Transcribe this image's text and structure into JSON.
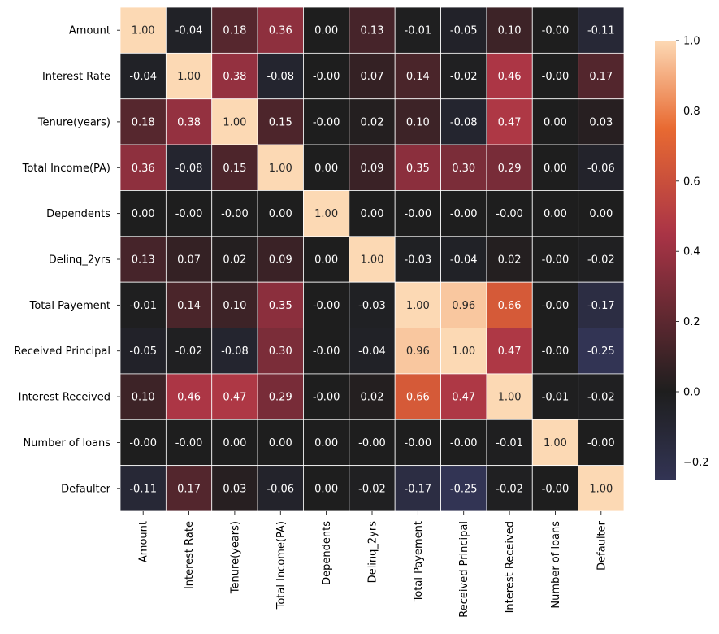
{
  "chart_data": {
    "type": "heatmap",
    "title": "",
    "labels": [
      "Amount",
      "Interest Rate",
      "Tenure(years)",
      "Total Income(PA)",
      "Dependents",
      "Delinq_2yrs",
      "Total Payement ",
      "Received Principal",
      "Interest Received",
      "Number of loans",
      "Defaulter"
    ],
    "values": [
      [
        1.0,
        -0.04,
        0.18,
        0.36,
        0.0,
        0.13,
        -0.01,
        -0.05,
        0.1,
        -0.0,
        -0.11
      ],
      [
        -0.04,
        1.0,
        0.38,
        -0.08,
        -0.0,
        0.07,
        0.14,
        -0.02,
        0.46,
        -0.0,
        0.17
      ],
      [
        0.18,
        0.38,
        1.0,
        0.15,
        -0.0,
        0.02,
        0.1,
        -0.08,
        0.47,
        0.0,
        0.03
      ],
      [
        0.36,
        -0.08,
        0.15,
        1.0,
        0.0,
        0.09,
        0.35,
        0.3,
        0.29,
        0.0,
        -0.06
      ],
      [
        0.0,
        -0.0,
        -0.0,
        0.0,
        1.0,
        0.0,
        -0.0,
        -0.0,
        -0.0,
        0.0,
        0.0
      ],
      [
        0.13,
        0.07,
        0.02,
        0.09,
        0.0,
        1.0,
        -0.03,
        -0.04,
        0.02,
        -0.0,
        -0.02
      ],
      [
        -0.01,
        0.14,
        0.1,
        0.35,
        -0.0,
        -0.03,
        1.0,
        0.96,
        0.66,
        -0.0,
        -0.17
      ],
      [
        -0.05,
        -0.02,
        -0.08,
        0.3,
        -0.0,
        -0.04,
        0.96,
        1.0,
        0.47,
        -0.0,
        -0.25
      ],
      [
        0.1,
        0.46,
        0.47,
        0.29,
        -0.0,
        0.02,
        0.66,
        0.47,
        1.0,
        -0.01,
        -0.02
      ],
      [
        -0.0,
        -0.0,
        0.0,
        0.0,
        0.0,
        -0.0,
        -0.0,
        -0.0,
        -0.01,
        1.0,
        -0.0
      ],
      [
        -0.11,
        0.17,
        0.03,
        -0.06,
        0.0,
        -0.02,
        -0.17,
        -0.25,
        -0.02,
        -0.0,
        1.0
      ]
    ],
    "value_labels": [
      [
        "1.00",
        "-0.04",
        "0.18",
        "0.36",
        "0.00",
        "0.13",
        "-0.01",
        "-0.05",
        "0.10",
        "-0.00",
        "-0.11"
      ],
      [
        "-0.04",
        "1.00",
        "0.38",
        "-0.08",
        "-0.00",
        "0.07",
        "0.14",
        "-0.02",
        "0.46",
        "-0.00",
        "0.17"
      ],
      [
        "0.18",
        "0.38",
        "1.00",
        "0.15",
        "-0.00",
        "0.02",
        "0.10",
        "-0.08",
        "0.47",
        "0.00",
        "0.03"
      ],
      [
        "0.36",
        "-0.08",
        "0.15",
        "1.00",
        "0.00",
        "0.09",
        "0.35",
        "0.30",
        "0.29",
        "0.00",
        "-0.06"
      ],
      [
        "0.00",
        "-0.00",
        "-0.00",
        "0.00",
        "1.00",
        "0.00",
        "-0.00",
        "-0.00",
        "-0.00",
        "0.00",
        "0.00"
      ],
      [
        "0.13",
        "0.07",
        "0.02",
        "0.09",
        "0.00",
        "1.00",
        "-0.03",
        "-0.04",
        "0.02",
        "-0.00",
        "-0.02"
      ],
      [
        "-0.01",
        "0.14",
        "0.10",
        "0.35",
        "-0.00",
        "-0.03",
        "1.00",
        "0.96",
        "0.66",
        "-0.00",
        "-0.17"
      ],
      [
        "-0.05",
        "-0.02",
        "-0.08",
        "0.30",
        "-0.00",
        "-0.04",
        "0.96",
        "1.00",
        "0.47",
        "-0.00",
        "-0.25"
      ],
      [
        "0.10",
        "0.46",
        "0.47",
        "0.29",
        "-0.00",
        "0.02",
        "0.66",
        "0.47",
        "1.00",
        "-0.01",
        "-0.02"
      ],
      [
        "-0.00",
        "-0.00",
        "0.00",
        "0.00",
        "0.00",
        "-0.00",
        "-0.00",
        "-0.00",
        "-0.01",
        "1.00",
        "-0.00"
      ],
      [
        "-0.11",
        "0.17",
        "0.03",
        "-0.06",
        "0.00",
        "-0.02",
        "-0.17",
        "-0.25",
        "-0.02",
        "-0.00",
        "1.00"
      ]
    ],
    "colorbar": {
      "range": [
        -0.25,
        1.0
      ],
      "center": 0.0,
      "ticks": [
        -0.2,
        0.0,
        0.2,
        0.4,
        0.6,
        0.8,
        1.0
      ],
      "tick_labels": [
        "−0.2",
        "0.0",
        "0.2",
        "0.4",
        "0.6",
        "0.8",
        "1.0"
      ],
      "placement": "right"
    },
    "colors": {
      "low": "#323454",
      "center": "#1e1e1e",
      "mid": "#aa3446",
      "mid_high": "#e86a32",
      "high": "#fcd9b4"
    },
    "cell_edge_color": "#ffffff",
    "grid": false
  }
}
